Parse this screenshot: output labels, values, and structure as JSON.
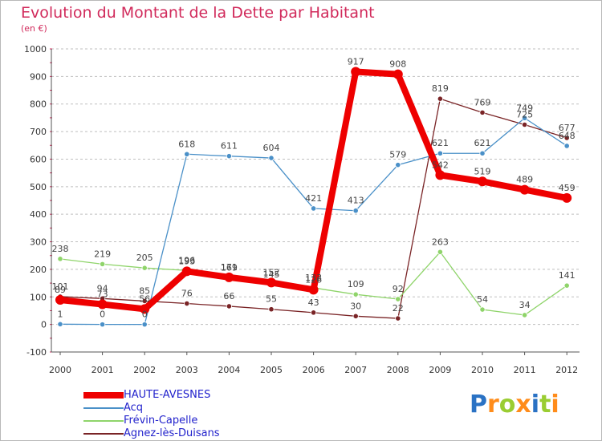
{
  "header": {
    "title": "Evolution du Montant de la Dette par Habitant",
    "subtitle": "(en €)"
  },
  "logo": {
    "text": "Proxiti",
    "colors": [
      "#2a72c4",
      "#ff8c1a",
      "#9acd32",
      "#ff8c1a",
      "#2a72c4",
      "#9acd32",
      "#ff8c1a"
    ]
  },
  "colors": {
    "title": "#d12a5b",
    "grid": "#bfbfbf",
    "legend_text": "#2222cc"
  },
  "chart_data": {
    "type": "line",
    "title": "Evolution du Montant de la Dette par Habitant",
    "subtitle": "(en €)",
    "xlabel": "",
    "ylabel": "",
    "ylim": [
      -100,
      1000
    ],
    "yticks": [
      -100,
      0,
      100,
      200,
      300,
      400,
      500,
      600,
      700,
      800,
      900,
      1000
    ],
    "grid": "horizontal dashed",
    "legend_position": "bottom-left",
    "x": [
      "2000",
      "2001",
      "2002",
      "2003",
      "2004",
      "2005",
      "2006",
      "2007",
      "2008",
      "2009",
      "2010",
      "2011",
      "2012"
    ],
    "series": [
      {
        "name": "HAUTE-AVESNES",
        "color": "#ee0000",
        "values": [
          89,
          73,
          56,
          193,
          171,
          152,
          126,
          917,
          908,
          542,
          519,
          489,
          459
        ],
        "labels": [
          "89",
          "73",
          "56",
          "193",
          "171",
          "152",
          "126",
          "917",
          "908",
          "542",
          "519",
          "489",
          "459"
        ]
      },
      {
        "name": "Acq",
        "color": "#4a90c8",
        "values": [
          1,
          0,
          0,
          618,
          611,
          604,
          421,
          413,
          579,
          621,
          621,
          749,
          648
        ],
        "labels": [
          "1",
          "0",
          "0",
          "618",
          "611",
          "604",
          "421",
          "413",
          "579",
          "621",
          "621",
          "749",
          "648"
        ]
      },
      {
        "name": "Frévin-Capelle",
        "color": "#8fd46a",
        "values": [
          238,
          219,
          205,
          196,
          169,
          145,
          133,
          109,
          92,
          263,
          54,
          34,
          141
        ],
        "labels": [
          "238",
          "219",
          "205",
          "196",
          "169",
          "145",
          "133",
          "109",
          "92",
          "263",
          "54",
          "34",
          "141"
        ]
      },
      {
        "name": "Agnez-lès-Duisans",
        "color": "#7a2426",
        "values": [
          101,
          94,
          85,
          76,
          66,
          55,
          43,
          30,
          22,
          819,
          769,
          725,
          677
        ],
        "labels": [
          "101",
          "94",
          "85",
          "76",
          "66",
          "55",
          "43",
          "30",
          "22",
          "819",
          "769",
          "725",
          "677"
        ]
      }
    ]
  }
}
